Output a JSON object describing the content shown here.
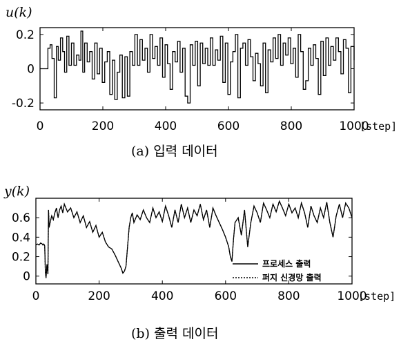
{
  "chart_data": [
    {
      "type": "line",
      "ylabel": "u(k)",
      "xlabel": "",
      "x_unit": "[step]",
      "caption": "(a) 입력 데이터",
      "xlim": [
        0,
        1000
      ],
      "ylim": [
        -0.24,
        0.24
      ],
      "xticks": [
        "0",
        "200",
        "400",
        "600",
        "800",
        "1000"
      ],
      "yticks": [
        "0.2",
        "0",
        "-0.2"
      ],
      "ytick_values": [
        0.2,
        0,
        -0.2
      ],
      "grid": false,
      "series": [
        {
          "style": "staircase",
          "x": [
            0,
            15,
            25,
            32,
            38,
            45,
            52,
            58,
            65,
            72,
            78,
            85,
            92,
            100,
            108,
            116,
            124,
            130,
            136,
            142,
            150,
            158,
            166,
            174,
            182,
            190,
            198,
            206,
            214,
            222,
            230,
            238,
            246,
            254,
            262,
            270,
            278,
            286,
            294,
            302,
            310,
            318,
            326,
            334,
            342,
            350,
            358,
            366,
            374,
            382,
            390,
            398,
            406,
            414,
            422,
            430,
            438,
            446,
            454,
            462,
            470,
            478,
            486,
            494,
            502,
            510,
            518,
            526,
            534,
            542,
            550,
            558,
            566,
            574,
            582,
            590,
            598,
            606,
            614,
            622,
            630,
            638,
            646,
            654,
            662,
            670,
            678,
            686,
            694,
            702,
            710,
            718,
            726,
            734,
            742,
            750,
            758,
            766,
            774,
            782,
            790,
            798,
            806,
            814,
            822,
            830,
            838,
            846,
            854,
            862,
            870,
            878,
            886,
            894,
            902,
            910,
            918,
            926,
            934,
            942,
            950,
            958,
            966,
            974,
            982,
            990,
            1000
          ],
          "y": [
            0,
            0,
            0.12,
            0.14,
            0.06,
            -0.17,
            0.13,
            0.05,
            0.18,
            0.1,
            -0.02,
            0.19,
            0.02,
            0.15,
            0.02,
            0.08,
            0.05,
            0.22,
            -0.02,
            0.15,
            0.04,
            0.1,
            -0.06,
            0.15,
            -0.03,
            0.12,
            -0.08,
            0.04,
            0.1,
            -0.15,
            0.05,
            -0.18,
            -0.02,
            0.08,
            -0.17,
            0.07,
            -0.16,
            0.1,
            0.02,
            0.2,
            0.02,
            0.17,
            0.05,
            0.12,
            -0.02,
            0.2,
            0.06,
            0.13,
            0.02,
            0.18,
            -0.05,
            0.14,
            0.03,
            -0.12,
            0.1,
            0.04,
            0.16,
            -0.02,
            0.12,
            -0.16,
            -0.2,
            0.14,
            0.02,
            0.16,
            -0.1,
            0.15,
            0.03,
            0.12,
            0.02,
            0.18,
            0.02,
            0.11,
            0.05,
            0.19,
            -0.08,
            0.15,
            -0.15,
            0.04,
            0.1,
            0.2,
            -0.17,
            0.12,
            0.15,
            0.02,
            0.17,
            0.07,
            -0.07,
            0.09,
            0.03,
            -0.1,
            0.15,
            -0.14,
            0.11,
            0.04,
            0.18,
            0.06,
            0.2,
            0.02,
            0.15,
            0.08,
            0.18,
            0.03,
            0.12,
            -0.05,
            0.2,
            0.1,
            -0.12,
            -0.07,
            0.12,
            0.02,
            0.14,
            0.06,
            -0.15,
            0.16,
            -0.04,
            0.18,
            0.02,
            0.13,
            0.05,
            0.18,
            0.1,
            -0.03,
            0.17,
            0.12,
            -0.14,
            0.13,
            0.05
          ]
        }
      ]
    },
    {
      "type": "line",
      "ylabel": "y(k)",
      "xlabel": "",
      "x_unit": "[step]",
      "caption": "(b) 출력 데이터",
      "xlim": [
        0,
        1000
      ],
      "ylim": [
        -0.08,
        0.8
      ],
      "xticks": [
        "0",
        "200",
        "400",
        "600",
        "800",
        "1000"
      ],
      "yticks": [
        "0.6",
        "0.4",
        "0.2",
        "0"
      ],
      "ytick_values": [
        0.6,
        0.4,
        0.2,
        0
      ],
      "grid": false,
      "legend": {
        "position": "bottom-right"
      },
      "series": [
        {
          "name": "프로세스 출력",
          "dash": "solid",
          "x": [
            0,
            5,
            10,
            15,
            20,
            22,
            25,
            28,
            30,
            32,
            35,
            38,
            40,
            42,
            45,
            50,
            55,
            60,
            65,
            70,
            75,
            80,
            85,
            90,
            95,
            100,
            110,
            120,
            130,
            140,
            150,
            160,
            170,
            180,
            190,
            200,
            210,
            220,
            230,
            240,
            250,
            260,
            270,
            275,
            280,
            285,
            290,
            295,
            300,
            305,
            310,
            320,
            330,
            340,
            350,
            360,
            370,
            380,
            390,
            400,
            410,
            420,
            430,
            440,
            450,
            460,
            470,
            480,
            490,
            500,
            510,
            520,
            530,
            540,
            550,
            560,
            570,
            580,
            590,
            600,
            605,
            610,
            615,
            620,
            625,
            630,
            640,
            650,
            660,
            670,
            680,
            690,
            700,
            710,
            720,
            730,
            740,
            750,
            760,
            770,
            780,
            790,
            800,
            810,
            820,
            830,
            840,
            850,
            860,
            870,
            880,
            890,
            900,
            910,
            920,
            930,
            940,
            950,
            960,
            970,
            980,
            990,
            1000
          ],
          "y": [
            0.32,
            0.33,
            0.32,
            0.34,
            0.33,
            0.32,
            0.33,
            0.31,
            0.05,
            -0.02,
            0.12,
            0.02,
            0.68,
            0.5,
            0.55,
            0.62,
            0.58,
            0.65,
            0.7,
            0.6,
            0.68,
            0.72,
            0.65,
            0.74,
            0.7,
            0.66,
            0.7,
            0.6,
            0.66,
            0.55,
            0.62,
            0.5,
            0.56,
            0.45,
            0.52,
            0.4,
            0.45,
            0.35,
            0.3,
            0.28,
            0.22,
            0.15,
            0.08,
            0.03,
            0.05,
            0.1,
            0.3,
            0.5,
            0.6,
            0.65,
            0.55,
            0.63,
            0.58,
            0.68,
            0.6,
            0.55,
            0.7,
            0.6,
            0.66,
            0.56,
            0.72,
            0.62,
            0.5,
            0.68,
            0.55,
            0.74,
            0.6,
            0.7,
            0.55,
            0.68,
            0.62,
            0.74,
            0.58,
            0.68,
            0.5,
            0.7,
            0.62,
            0.55,
            0.48,
            0.4,
            0.35,
            0.3,
            0.2,
            0.15,
            0.38,
            0.55,
            0.6,
            0.42,
            0.68,
            0.3,
            0.55,
            0.72,
            0.65,
            0.55,
            0.75,
            0.68,
            0.6,
            0.74,
            0.66,
            0.77,
            0.7,
            0.62,
            0.74,
            0.65,
            0.7,
            0.6,
            0.75,
            0.65,
            0.5,
            0.72,
            0.62,
            0.55,
            0.7,
            0.6,
            0.76,
            0.55,
            0.4,
            0.62,
            0.74,
            0.6,
            0.75,
            0.7,
            0.6
          ]
        },
        {
          "name": "퍼지 신경망 출력",
          "dash": "dotted",
          "x": [
            0,
            5,
            10,
            15,
            20,
            22,
            25,
            28,
            30,
            32,
            35,
            38,
            40,
            42,
            45,
            50,
            55,
            60,
            65,
            70,
            75,
            80,
            85,
            90,
            95,
            100,
            110,
            120,
            130,
            140,
            150,
            160,
            170,
            180,
            190,
            200,
            210,
            220,
            230,
            240,
            250,
            260,
            270,
            275,
            280,
            285,
            290,
            295,
            300,
            305,
            310,
            320,
            330,
            340,
            350,
            360,
            370,
            380,
            390,
            400,
            410,
            420,
            430,
            440,
            450,
            460,
            470,
            480,
            490,
            500,
            510,
            520,
            530,
            540,
            550,
            560,
            570,
            580,
            590,
            600,
            605,
            610,
            615,
            620,
            625,
            630,
            640,
            650,
            660,
            670,
            680,
            690,
            700,
            710,
            720,
            730,
            740,
            750,
            760,
            770,
            780,
            790,
            800,
            810,
            820,
            830,
            840,
            850,
            860,
            870,
            880,
            890,
            900,
            910,
            920,
            930,
            940,
            950,
            960,
            970,
            980,
            990,
            1000
          ],
          "y": [
            0.32,
            0.33,
            0.32,
            0.34,
            0.33,
            0.32,
            0.33,
            0.31,
            0.05,
            -0.02,
            0.12,
            0.02,
            0.68,
            0.5,
            0.55,
            0.62,
            0.58,
            0.65,
            0.7,
            0.6,
            0.68,
            0.72,
            0.65,
            0.74,
            0.7,
            0.66,
            0.7,
            0.6,
            0.66,
            0.55,
            0.62,
            0.5,
            0.56,
            0.45,
            0.52,
            0.4,
            0.45,
            0.35,
            0.3,
            0.28,
            0.22,
            0.15,
            0.08,
            0.03,
            0.05,
            0.1,
            0.3,
            0.5,
            0.6,
            0.65,
            0.55,
            0.63,
            0.58,
            0.68,
            0.6,
            0.55,
            0.7,
            0.6,
            0.66,
            0.56,
            0.72,
            0.62,
            0.5,
            0.68,
            0.55,
            0.74,
            0.6,
            0.7,
            0.55,
            0.68,
            0.62,
            0.74,
            0.58,
            0.68,
            0.5,
            0.7,
            0.62,
            0.55,
            0.48,
            0.4,
            0.35,
            0.3,
            0.2,
            0.15,
            0.38,
            0.55,
            0.6,
            0.42,
            0.68,
            0.3,
            0.55,
            0.72,
            0.65,
            0.55,
            0.75,
            0.68,
            0.6,
            0.74,
            0.66,
            0.77,
            0.7,
            0.62,
            0.74,
            0.65,
            0.7,
            0.6,
            0.75,
            0.65,
            0.5,
            0.72,
            0.62,
            0.55,
            0.7,
            0.6,
            0.76,
            0.55,
            0.4,
            0.62,
            0.74,
            0.6,
            0.75,
            0.7,
            0.6
          ]
        }
      ]
    }
  ]
}
